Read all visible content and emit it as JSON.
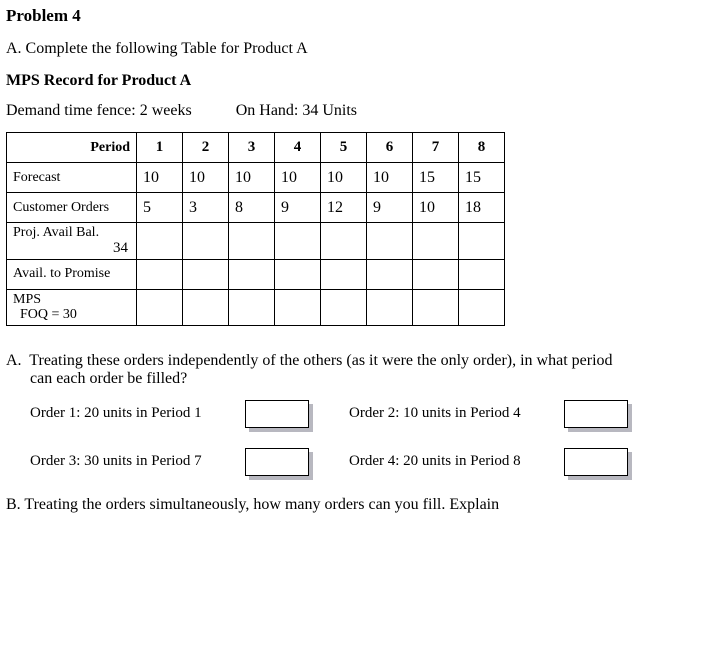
{
  "title": "Problem 4",
  "partA_intro": "A.  Complete the following Table for Product A",
  "subtitle": "MPS Record for Product A",
  "demand_fence": "Demand time fence: 2 weeks",
  "on_hand": "On Hand: 34 Units",
  "table": {
    "period_label": "Period",
    "periods": [
      "1",
      "2",
      "3",
      "4",
      "5",
      "6",
      "7",
      "8"
    ],
    "rows": {
      "forecast_label": "Forecast",
      "forecast": [
        "10",
        "10",
        "10",
        "10",
        "10",
        "10",
        "15",
        "15"
      ],
      "orders_label": "Customer Orders",
      "orders": [
        "5",
        "3",
        "8",
        "9",
        "12",
        "9",
        "10",
        "18"
      ],
      "pab_label": "Proj. Avail Bal.",
      "pab_start": "34",
      "pab": [
        "",
        "",
        "",
        "",
        "",
        "",
        "",
        ""
      ],
      "atp_label": "Avail.  to Promise",
      "atp": [
        "",
        "",
        "",
        "",
        "",
        "",
        "",
        ""
      ],
      "mps_label_line1": "MPS",
      "mps_label_line2": "  FOQ = 30",
      "mps": [
        "",
        "",
        "",
        "",
        "",
        "",
        "",
        ""
      ]
    }
  },
  "qA": {
    "prefix": "A.",
    "text1": "Treating these orders independently of the others (as it were the only order), in what period",
    "text2": "can each order be filled?",
    "order1": "Order 1:  20 units in Period 1",
    "order2": "Order 2:  10 units in Period 4",
    "order3": "Order 3:  30 units in Period 7",
    "order4": "Order 4:  20 units in Period 8"
  },
  "qB": "B.  Treating the orders simultaneously, how many orders can you fill. Explain"
}
